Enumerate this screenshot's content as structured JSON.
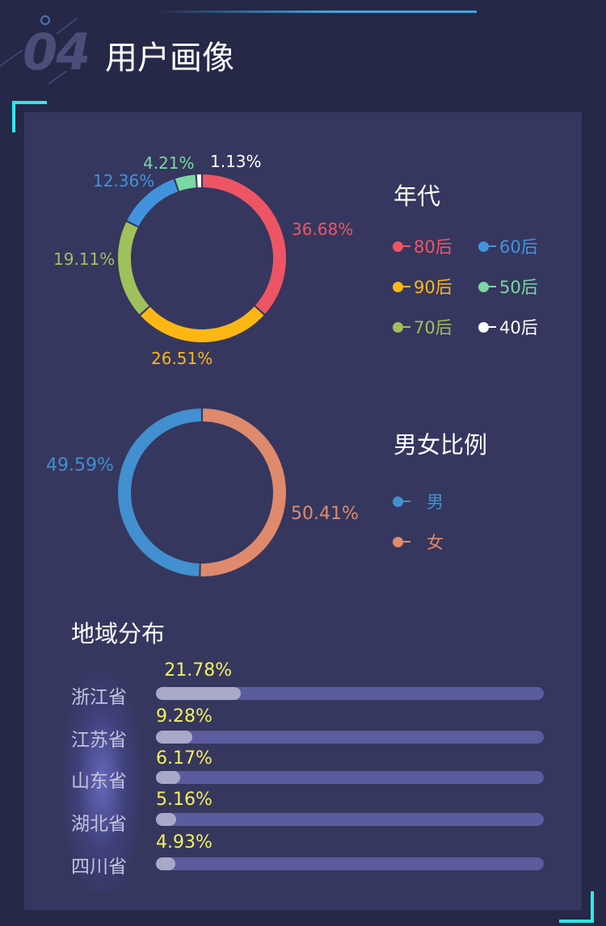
{
  "header": {
    "number": "04",
    "title": "用户画像"
  },
  "age_chart": {
    "title": "年代",
    "chart_data": {
      "type": "pie",
      "style": "donut",
      "series": [
        {
          "name": "80后",
          "value": 36.68,
          "label": "36.68%",
          "color": "#ee5564"
        },
        {
          "name": "90后",
          "value": 26.51,
          "label": "26.51%",
          "color": "#fdb714"
        },
        {
          "name": "70后",
          "value": 19.11,
          "label": "19.11%",
          "color": "#a0c05c"
        },
        {
          "name": "60后",
          "value": 12.36,
          "label": "12.36%",
          "color": "#4293de"
        },
        {
          "name": "50后",
          "value": 4.21,
          "label": "4.21%",
          "color": "#7ad8a2"
        },
        {
          "name": "40后",
          "value": 1.13,
          "label": "1.13%",
          "color": "#ffffff"
        }
      ],
      "legend_position": "right"
    },
    "legend": [
      {
        "name": "80后",
        "color": "#ee5564"
      },
      {
        "name": "60后",
        "color": "#4293de"
      },
      {
        "name": "90后",
        "color": "#fdb714"
      },
      {
        "name": "50后",
        "color": "#7ad8a2"
      },
      {
        "name": "70后",
        "color": "#a0c05c"
      },
      {
        "name": "40后",
        "color": "#ffffff"
      }
    ]
  },
  "gender_chart": {
    "title": "男女比例",
    "chart_data": {
      "type": "pie",
      "style": "donut",
      "series": [
        {
          "name": "女",
          "value": 50.41,
          "label": "50.41%",
          "color": "#df8a6c"
        },
        {
          "name": "男",
          "value": 49.59,
          "label": "49.59%",
          "color": "#4290cf"
        }
      ],
      "legend_position": "right"
    },
    "legend": [
      {
        "name": "男",
        "color": "#4290cf"
      },
      {
        "name": "女",
        "color": "#df8a6c"
      }
    ]
  },
  "region_chart": {
    "title": "地域分布",
    "chart_data": {
      "type": "bar",
      "orientation": "horizontal",
      "categories": [
        "浙江省",
        "江苏省",
        "山东省",
        "湖北省",
        "四川省"
      ],
      "values": [
        21.78,
        9.28,
        6.17,
        5.16,
        4.93
      ],
      "labels": [
        "21.78%",
        "9.28%",
        "6.17%",
        "5.16%",
        "4.93%"
      ],
      "xlim": [
        0,
        100
      ]
    }
  }
}
